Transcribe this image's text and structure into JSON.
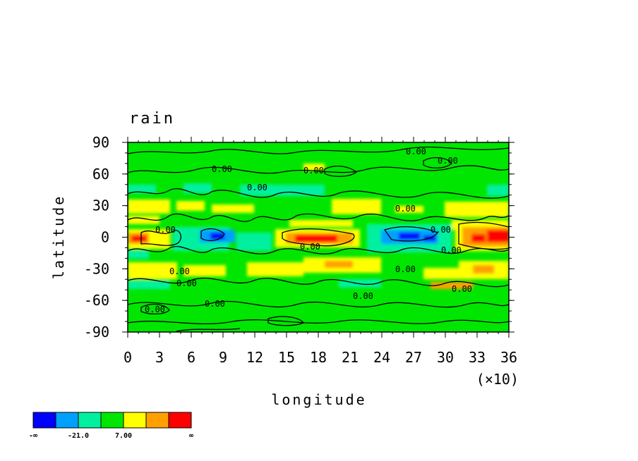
{
  "chart_data": {
    "type": "heatmap",
    "title": "rain",
    "xlabel": "longitude",
    "ylabel": "latitude",
    "x_multiplier_label": "(×10)",
    "xlim": [
      0,
      36
    ],
    "ylim": [
      -90,
      90
    ],
    "x_ticks": [
      "0",
      "3",
      "6",
      "9",
      "12",
      "15",
      "18",
      "21",
      "24",
      "27",
      "30",
      "33",
      "36"
    ],
    "y_ticks": [
      "90",
      "60",
      "30",
      "0",
      "-30",
      "-60",
      "-90"
    ],
    "contour_labels": [
      "0.00",
      "0.00",
      "0.00",
      "0.00",
      "0.00",
      "0.00",
      "0.00",
      "0.00",
      "0.00",
      "0.00",
      "0.00",
      "0.00",
      "0.00",
      "0.00",
      "0.00",
      "0.00",
      "0.00"
    ],
    "colorbar": {
      "colors": [
        "#0000ff",
        "#00a0ff",
        "#00f0a0",
        "#00e600",
        "#ffff00",
        "#ffa000",
        "#ff0000"
      ],
      "labels": [
        "-∞",
        "-21.0",
        "7.00",
        "∞"
      ]
    },
    "features": [
      {
        "name": "equatorial-max-west",
        "lon": 1.0,
        "lat": 0,
        "level": 6
      },
      {
        "name": "equatorial-max-central",
        "lon": 17.5,
        "lat": 0,
        "level": 6
      },
      {
        "name": "equatorial-max-east",
        "lon": 35.0,
        "lat": 2,
        "level": 6
      },
      {
        "name": "equatorial-min-west",
        "lon": 9.0,
        "lat": 2,
        "level": 0
      },
      {
        "name": "equatorial-min-east",
        "lon": 26.0,
        "lat": 0,
        "level": 0
      },
      {
        "name": "northern-wet-band",
        "lat": 30,
        "level": 4
      },
      {
        "name": "southern-wet-band",
        "lat": -30,
        "level": 4
      }
    ]
  }
}
